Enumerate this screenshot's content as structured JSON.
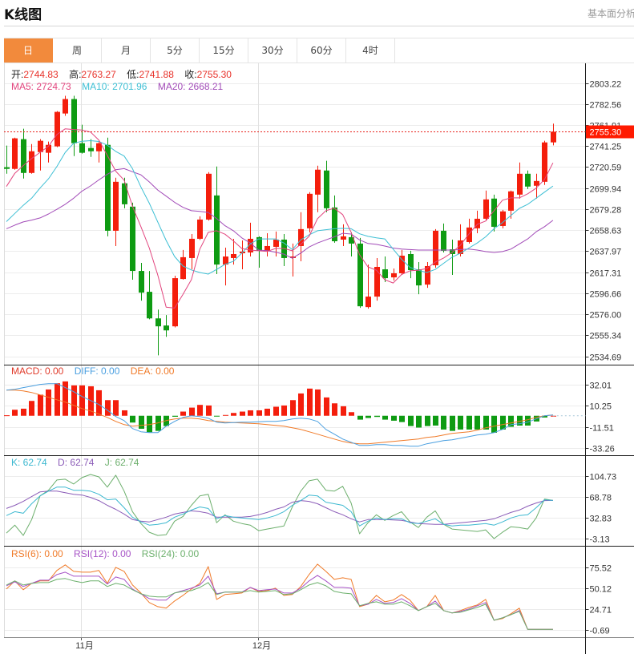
{
  "header": {
    "title": "K线图",
    "link": "基本面分析>"
  },
  "tabs": [
    {
      "label": "日",
      "active": true
    },
    {
      "label": "周",
      "active": false
    },
    {
      "label": "月",
      "active": false
    },
    {
      "label": "5分",
      "active": false
    },
    {
      "label": "15分",
      "active": false
    },
    {
      "label": "30分",
      "active": false
    },
    {
      "label": "60分",
      "active": false
    },
    {
      "label": "4时",
      "active": false
    }
  ],
  "legend": {
    "ohlc": [
      {
        "label": "开:",
        "value": "2744.83"
      },
      {
        "label": "高:",
        "value": "2763.27"
      },
      {
        "label": "低:",
        "value": "2741.88"
      },
      {
        "label": "收:",
        "value": "2755.30"
      }
    ],
    "ma": [
      {
        "label": "MA5: ",
        "value": "2724.73"
      },
      {
        "label": "MA10: ",
        "value": "2701.96"
      },
      {
        "label": "MA20: ",
        "value": "2668.21"
      }
    ],
    "macd": [
      {
        "label": "MACD: ",
        "value": "0.00"
      },
      {
        "label": "DIFF: ",
        "value": "0.00"
      },
      {
        "label": "DEA: ",
        "value": "0.00"
      }
    ],
    "kdj": [
      {
        "label": "K: ",
        "value": "62.74"
      },
      {
        "label": "D: ",
        "value": "62.74"
      },
      {
        "label": "J: ",
        "value": "62.74"
      }
    ],
    "rsi": [
      {
        "label": "RSI(6): ",
        "value": "0.00"
      },
      {
        "label": "RSI(12): ",
        "value": "0.00"
      },
      {
        "label": "RSI(24): ",
        "value": "0.00"
      }
    ]
  },
  "colors": {
    "up": "#F41E0C",
    "down": "#0E9B12",
    "active_tab": "#F28A3C",
    "ma5": "#E2457E",
    "ma10": "#3DBFD4",
    "ma20": "#A24BB8",
    "macd": "#E03A2A",
    "diff": "#4A9FE0",
    "dea": "#F07A28",
    "k": "#3CB8D0",
    "d": "#8B5CB8",
    "j": "#6CAF6C",
    "rsi6": "#F07A28",
    "rsi12": "#A653C6",
    "rsi24": "#6CB06C",
    "price_line": "#E8221A",
    "price_box": "#FF1A00"
  },
  "chart_data": {
    "type": "candlestick",
    "title": "K线图",
    "period": "日",
    "x_labels": [
      {
        "index": 9,
        "label": "11月"
      },
      {
        "index": 30,
        "label": "12月"
      }
    ],
    "current_price": "2755.30",
    "candle_fields": [
      "open",
      "high",
      "low",
      "close"
    ],
    "candles": [
      [
        2720.4,
        2741.7,
        2714.0,
        2718.8
      ],
      [
        2718.8,
        2749.5,
        2718.0,
        2748.8
      ],
      [
        2748.0,
        2758.2,
        2709.3,
        2714.8
      ],
      [
        2714.8,
        2743.2,
        2714.0,
        2736.1
      ],
      [
        2735.3,
        2748.0,
        2717.2,
        2746.4
      ],
      [
        2734.6,
        2745.6,
        2725.1,
        2742.4
      ],
      [
        2740.9,
        2775.6,
        2740.1,
        2774.8
      ],
      [
        2773.2,
        2790.6,
        2770.9,
        2787.4
      ],
      [
        2787.4,
        2790.6,
        2731.4,
        2744.0
      ],
      [
        2744.0,
        2762.2,
        2733.8,
        2734.6
      ],
      [
        2739.3,
        2748.0,
        2730.6,
        2736.1
      ],
      [
        2736.1,
        2745.0,
        2725.1,
        2744.0
      ],
      [
        2742.4,
        2749.5,
        2652.5,
        2658.0
      ],
      [
        2658.0,
        2710.1,
        2643.0,
        2706.1
      ],
      [
        2704.6,
        2710.1,
        2680.1,
        2684.0
      ],
      [
        2681.7,
        2685.6,
        2609.9,
        2618.5
      ],
      [
        2618.5,
        2626.4,
        2589.3,
        2597.2
      ],
      [
        2598.0,
        2618.5,
        2571.0,
        2571.9
      ],
      [
        2571.9,
        2580.6,
        2535.6,
        2564.1
      ],
      [
        2564.9,
        2575.1,
        2553.8,
        2560.1
      ],
      [
        2564.1,
        2613.8,
        2563.0,
        2611.4
      ],
      [
        2610.6,
        2639.1,
        2610.0,
        2632.0
      ],
      [
        2631.2,
        2654.8,
        2620.1,
        2650.1
      ],
      [
        2650.1,
        2672.2,
        2649.0,
        2669.0
      ],
      [
        2669.0,
        2715.6,
        2668.0,
        2714.0
      ],
      [
        2692.7,
        2721.1,
        2615.4,
        2624.8
      ],
      [
        2624.8,
        2641.4,
        2604.3,
        2632.7
      ],
      [
        2631.2,
        2650.1,
        2624.8,
        2635.1
      ],
      [
        2635.9,
        2648.5,
        2620.1,
        2637.5
      ],
      [
        2636.7,
        2665.9,
        2632.7,
        2650.1
      ],
      [
        2651.7,
        2652.5,
        2621.7,
        2638.3
      ],
      [
        2638.3,
        2655.6,
        2632.7,
        2643.0
      ],
      [
        2642.2,
        2657.2,
        2632.7,
        2649.3
      ],
      [
        2649.3,
        2654.8,
        2623.3,
        2631.2
      ],
      [
        2631.2,
        2645.4,
        2613.0,
        2632.7
      ],
      [
        2643.0,
        2676.2,
        2628.0,
        2659.6
      ],
      [
        2660.4,
        2695.9,
        2656.4,
        2694.3
      ],
      [
        2693.5,
        2721.9,
        2676.2,
        2718.0
      ],
      [
        2717.2,
        2726.7,
        2676.2,
        2680.1
      ],
      [
        2680.9,
        2692.7,
        2646.2,
        2647.7
      ],
      [
        2649.3,
        2664.3,
        2643.0,
        2652.5
      ],
      [
        2651.7,
        2656.4,
        2632.7,
        2645.4
      ],
      [
        2645.4,
        2650.9,
        2582.2,
        2583.8
      ],
      [
        2583.0,
        2624.8,
        2581.4,
        2593.3
      ],
      [
        2593.3,
        2631.2,
        2589.3,
        2622.5
      ],
      [
        2620.1,
        2632.7,
        2607.5,
        2611.4
      ],
      [
        2612.2,
        2620.9,
        2609.1,
        2616.2
      ],
      [
        2616.2,
        2639.1,
        2614.6,
        2633.5
      ],
      [
        2635.1,
        2638.3,
        2611.4,
        2619.3
      ],
      [
        2620.1,
        2627.2,
        2595.6,
        2604.3
      ],
      [
        2605.1,
        2627.2,
        2601.9,
        2623.3
      ],
      [
        2624.1,
        2659.6,
        2621.7,
        2658.0
      ],
      [
        2658.0,
        2665.1,
        2636.7,
        2638.3
      ],
      [
        2639.8,
        2649.3,
        2614.6,
        2635.1
      ],
      [
        2635.1,
        2664.3,
        2632.7,
        2648.5
      ],
      [
        2646.9,
        2669.8,
        2645.4,
        2661.2
      ],
      [
        2660.4,
        2677.7,
        2655.6,
        2669.8
      ],
      [
        2669.8,
        2697.5,
        2668.3,
        2688.8
      ],
      [
        2689.6,
        2693.5,
        2657.2,
        2661.9
      ],
      [
        2662.7,
        2678.5,
        2660.4,
        2677.0
      ],
      [
        2677.7,
        2697.5,
        2669.8,
        2696.7
      ],
      [
        2693.5,
        2725.1,
        2689.6,
        2714.0
      ],
      [
        2714.0,
        2717.2,
        2699.0,
        2701.4
      ],
      [
        2702.2,
        2714.0,
        2689.6,
        2706.9
      ],
      [
        2706.1,
        2746.4,
        2703.0,
        2744.8
      ],
      [
        2744.83,
        2763.27,
        2741.88,
        2755.3
      ]
    ],
    "ma5": [
      2701.5,
      2714.5,
      2722,
      2729,
      2735,
      2741,
      2752.5,
      2758.2,
      2757.5,
      2757,
      2755,
      2747,
      2732,
      2716.5,
      2707.7,
      2682,
      2662,
      2641,
      2614.6,
      2583,
      2582,
      2595.6,
      2610,
      2640,
      2656.4,
      2658,
      2654.6,
      2648,
      2640.5,
      2639,
      2638.3,
      2637.6,
      2640.6,
      2640.6,
      2638.3,
      2644.6,
      2652.5,
      2669.8,
      2677.7,
      2680.1,
      2673.8,
      2656.4,
      2634.5,
      2622.5,
      2619.3,
      2609.9,
      2606.7,
      2615,
      2618.6,
      2619.3,
      2620.9,
      2627.2,
      2631.2,
      2636.7,
      2643.8,
      2654.8,
      2664.3,
      2667.5,
      2677.7,
      2688,
      2690.3,
      2690.3,
      2694.3,
      2699.8,
      2708.5,
      2724.73
    ],
    "ma10": [
      2667,
      2675,
      2683,
      2690,
      2700,
      2709,
      2721,
      2735,
      2744,
      2746,
      2746.5,
      2745.7,
      2742,
      2736,
      2731.4,
      2719,
      2701,
      2685,
      2666.7,
      2648.5,
      2632.7,
      2623.3,
      2619.5,
      2617,
      2615.4,
      2620,
      2625,
      2628,
      2636,
      2645,
      2650,
      2650,
      2650,
      2646,
      2639.5,
      2649,
      2654,
      2658,
      2659,
      2660,
      2660.4,
      2660,
      2655,
      2652.5,
      2651,
      2650,
      2640,
      2630,
      2622,
      2619.3,
      2617,
      2620,
      2626,
      2632,
      2636,
      2641,
      2646,
      2652,
      2660,
      2666,
      2673,
      2680,
      2684,
      2690,
      2696,
      2701.96
    ],
    "ma20": [
      2660,
      2663.5,
      2666.7,
      2668.5,
      2670.6,
      2674.5,
      2679,
      2684,
      2690,
      2697,
      2702,
      2708,
      2713.5,
      2718,
      2719,
      2716,
      2713,
      2706,
      2698,
      2692,
      2686,
      2681,
      2677.7,
      2677,
      2676,
      2670,
      2663,
      2658,
      2651,
      2646,
      2639,
      2638.5,
      2637,
      2635,
      2631,
      2636,
      2642,
      2646,
      2649,
      2652,
      2655.5,
      2654.8,
      2649,
      2645.5,
      2644.6,
      2643,
      2641,
      2640,
      2639.5,
      2639,
      2639,
      2639,
      2639,
      2639,
      2639.5,
      2640,
      2639,
      2637.5,
      2636.7,
      2637.5,
      2640,
      2645,
      2650,
      2657,
      2662,
      2668.21
    ],
    "price_axis": {
      "ticks": [
        "2803.22",
        "2782.56",
        "2761.91",
        "2741.25",
        "2720.59",
        "2699.94",
        "2679.28",
        "2658.63",
        "2637.97",
        "2617.31",
        "2596.66",
        "2576.00",
        "2555.34",
        "2534.69"
      ]
    },
    "macd": {
      "ticks": [
        "32.01",
        "10.25",
        "-11.51",
        "-33.26"
      ],
      "hist": [
        0.5,
        6.2,
        7.3,
        15.3,
        21.7,
        27.1,
        33.5,
        35.4,
        31.3,
        31.3,
        30.4,
        26.3,
        16.1,
        16.1,
        5.6,
        -7.0,
        -13.4,
        -17.0,
        -15.6,
        -10.6,
        -1.0,
        4.3,
        8.4,
        11.2,
        10.6,
        -0.5,
        0.8,
        2.9,
        4.3,
        5.6,
        5.6,
        7.3,
        9.3,
        10.6,
        16.1,
        23.0,
        28.0,
        27.1,
        18.9,
        12.8,
        9.8,
        3.7,
        -4.0,
        -2.3,
        -1.2,
        -4.0,
        -5.1,
        -6.5,
        -10.6,
        -12.2,
        -10.6,
        -10.1,
        -14.2,
        -15.6,
        -14.2,
        -14.2,
        -14.2,
        -14.2,
        -17.5,
        -14.2,
        -11.4,
        -10.1,
        -10.1,
        -5.9,
        -1.8,
        0
      ],
      "diff": [
        26.5,
        27.3,
        29.0,
        30.6,
        32.3,
        33.1,
        33.1,
        29.0,
        24.8,
        19.9,
        15.7,
        11.6,
        5.8,
        -0.8,
        -5.0,
        -13.2,
        -16.5,
        -17.4,
        -17.4,
        -10.8,
        -5.8,
        -1.7,
        0,
        -0.8,
        -2.5,
        -6.6,
        -7.4,
        -7.0,
        -6.6,
        -6.6,
        -6.2,
        -5.8,
        -5.8,
        -5.0,
        -3.3,
        -2.5,
        -3.3,
        -5.8,
        -14.1,
        -19.0,
        -24.0,
        -27.3,
        -30.6,
        -30.6,
        -29.8,
        -29.8,
        -30.6,
        -30.6,
        -31.4,
        -31.4,
        -28.9,
        -27.3,
        -25.6,
        -24.8,
        -23.2,
        -21.5,
        -19.9,
        -19.0,
        -17.4,
        -14.1,
        -9.1,
        -8.3,
        -6.6,
        -3.3,
        0,
        0.8
      ],
      "dea": [
        26.5,
        26.5,
        25.6,
        24.0,
        21.5,
        19.0,
        16.5,
        14.1,
        10.8,
        7.4,
        5.0,
        1.7,
        -1.7,
        -5.8,
        -9.1,
        -10.8,
        -9.9,
        -9.1,
        -7.4,
        -5.0,
        -3.3,
        -2.5,
        -2.5,
        -3.3,
        -5.0,
        -5.8,
        -6.6,
        -7.0,
        -7.4,
        -7.9,
        -8.3,
        -9.1,
        -9.9,
        -10.8,
        -12.4,
        -14.1,
        -16.5,
        -19.0,
        -21.5,
        -24.0,
        -26.5,
        -28.1,
        -28.9,
        -28.9,
        -28.1,
        -27.3,
        -26.5,
        -25.6,
        -24.8,
        -24.0,
        -22.3,
        -21.5,
        -19.9,
        -18.2,
        -17.4,
        -16.5,
        -14.9,
        -12.4,
        -10.8,
        -9.1,
        -7.4,
        -5.8,
        -4.1,
        -1.7,
        0,
        0.8
      ]
    },
    "kdj": {
      "ticks": [
        "104.73",
        "68.78",
        "32.83",
        "-3.13"
      ],
      "k": [
        36.5,
        43.3,
        40.6,
        57.0,
        70.6,
        78.8,
        85.7,
        85.7,
        80.2,
        80.2,
        78.8,
        73.4,
        63.8,
        65.2,
        50.1,
        33.8,
        25.6,
        20.1,
        21.5,
        24.2,
        33.8,
        39.2,
        46.1,
        51.5,
        48.8,
        31.0,
        36.5,
        33.8,
        32.4,
        31.0,
        29.7,
        32.4,
        36.5,
        43.3,
        54.2,
        62.4,
        72.0,
        70.6,
        59.7,
        57.0,
        54.2,
        43.3,
        18.7,
        26.9,
        32.4,
        29.7,
        31.0,
        31.0,
        24.2,
        22.8,
        26.9,
        31.0,
        21.5,
        18.7,
        20.1,
        20.1,
        21.5,
        22.8,
        20.1,
        25.6,
        32.4,
        36.5,
        37.9,
        50.1,
        63.8,
        62.74
      ],
      "d": [
        48.8,
        54.2,
        61.1,
        69.3,
        77.5,
        78.8,
        78.8,
        76.1,
        73.4,
        72.0,
        67.9,
        62.4,
        54.2,
        47.4,
        39.2,
        29.7,
        26.9,
        25.6,
        29.7,
        33.8,
        39.2,
        41.9,
        44.7,
        43.3,
        40.6,
        33.8,
        33.8,
        33.8,
        33.8,
        35.1,
        37.9,
        41.9,
        47.4,
        51.5,
        59.7,
        62.4,
        61.1,
        57.0,
        50.1,
        43.3,
        37.9,
        31.0,
        25.6,
        29.7,
        29.7,
        29.7,
        29.0,
        28.3,
        25.6,
        22.8,
        22.1,
        21.5,
        21.5,
        22.8,
        24.2,
        25.6,
        26.9,
        28.3,
        31.0,
        36.5,
        41.9,
        46.1,
        52.9,
        58.3,
        62.4,
        62.74
      ],
      "j": [
        6.4,
        20.1,
        2.3,
        29.7,
        70.6,
        80.2,
        98.0,
        99.3,
        91.1,
        102.1,
        107.5,
        103.4,
        85.7,
        106.2,
        78.8,
        43.3,
        22.8,
        7.8,
        2.3,
        3.7,
        26.9,
        35.1,
        54.3,
        70.6,
        73.4,
        24.2,
        37.9,
        26.9,
        22.8,
        20.1,
        10.5,
        13.3,
        16.0,
        18.7,
        51.5,
        78.8,
        96.6,
        99.3,
        80.2,
        78.8,
        87.0,
        58.3,
        5.1,
        24.2,
        37.9,
        28.3,
        36.5,
        43.3,
        25.6,
        16.0,
        33.8,
        44.7,
        21.5,
        13.3,
        11.9,
        10.5,
        9.2,
        11.9,
        -3.1,
        7.8,
        17.4,
        16.0,
        13.3,
        32.4,
        65.2,
        62.74
      ]
    },
    "rsi": {
      "ticks": [
        "75.52",
        "50.12",
        "24.71",
        "-0.69"
      ],
      "rsi6": [
        48.9,
        58.7,
        48.0,
        55.7,
        58.7,
        58.7,
        71.3,
        78.1,
        70.3,
        69.3,
        69.3,
        71.3,
        55.7,
        75.1,
        70.3,
        53.8,
        44.1,
        32.5,
        27.6,
        25.7,
        34.4,
        41.2,
        48.9,
        55.7,
        76.1,
        36.3,
        42.2,
        43.1,
        44.1,
        50.9,
        46.0,
        47.0,
        49.9,
        41.2,
        42.2,
        51.9,
        66.4,
        79.0,
        70.3,
        60.6,
        62.5,
        60.6,
        27.6,
        30.5,
        41.2,
        33.4,
        35.4,
        42.2,
        35.4,
        22.8,
        27.6,
        41.2,
        22.8,
        19.9,
        22.8,
        26.6,
        29.6,
        36.3,
        11.1,
        13.1,
        18.9,
        25.7,
        0,
        0,
        0,
        0
      ],
      "rsi12": [
        52.8,
        57.7,
        51.9,
        55.7,
        59.6,
        59.6,
        66.4,
        69.3,
        64.5,
        64.5,
        64.5,
        64.5,
        54.8,
        63.5,
        60.6,
        48.9,
        43.1,
        37.3,
        35.4,
        35.4,
        44.1,
        47.0,
        49.9,
        53.8,
        64.5,
        43.1,
        45.1,
        45.1,
        45.1,
        50.9,
        47.0,
        48.0,
        48.9,
        44.1,
        44.1,
        49.9,
        58.7,
        65.4,
        58.7,
        50.9,
        50.9,
        49.9,
        28.6,
        30.5,
        36.3,
        31.5,
        32.5,
        37.3,
        31.5,
        22.8,
        27.6,
        34.4,
        22.8,
        19.9,
        21.8,
        24.7,
        28.6,
        32.5,
        11.1,
        14.0,
        17.9,
        22.8,
        0,
        0,
        0,
        0
      ],
      "rsi24": [
        53.8,
        58.7,
        53.8,
        55.7,
        56.7,
        56.7,
        60.6,
        61.6,
        58.7,
        56.7,
        58.7,
        58.7,
        51.9,
        55.7,
        53.8,
        48.0,
        43.1,
        40.2,
        39.3,
        39.3,
        44.1,
        46.0,
        47.0,
        50.9,
        56.7,
        42.2,
        45.1,
        45.1,
        45.1,
        47.0,
        45.1,
        46.0,
        47.0,
        42.2,
        43.1,
        48.0,
        53.8,
        56.7,
        52.8,
        46.0,
        44.1,
        43.1,
        28.6,
        31.5,
        33.4,
        30.5,
        30.5,
        33.4,
        28.6,
        22.8,
        27.6,
        31.5,
        22.8,
        19.9,
        20.8,
        23.7,
        26.6,
        30.5,
        11.1,
        14.0,
        17.9,
        21.8,
        0,
        0,
        0,
        0
      ]
    }
  }
}
